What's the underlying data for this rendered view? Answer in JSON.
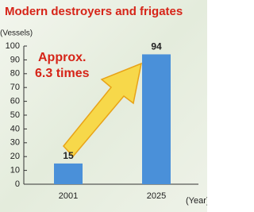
{
  "chart_data": {
    "type": "bar",
    "title": "Modern destroyers and frigates",
    "y_label": "(Vessels)",
    "x_label": "(Year)",
    "annotation": [
      "Approx.",
      "6.3 times"
    ],
    "categories": [
      "2001",
      "2025"
    ],
    "values": [
      15,
      94
    ],
    "color": "#4a90d9",
    "ylim": [
      0,
      100
    ],
    "yticks": [
      0,
      10,
      20,
      30,
      40,
      50,
      60,
      70,
      80,
      90,
      100
    ],
    "grid": false
  }
}
